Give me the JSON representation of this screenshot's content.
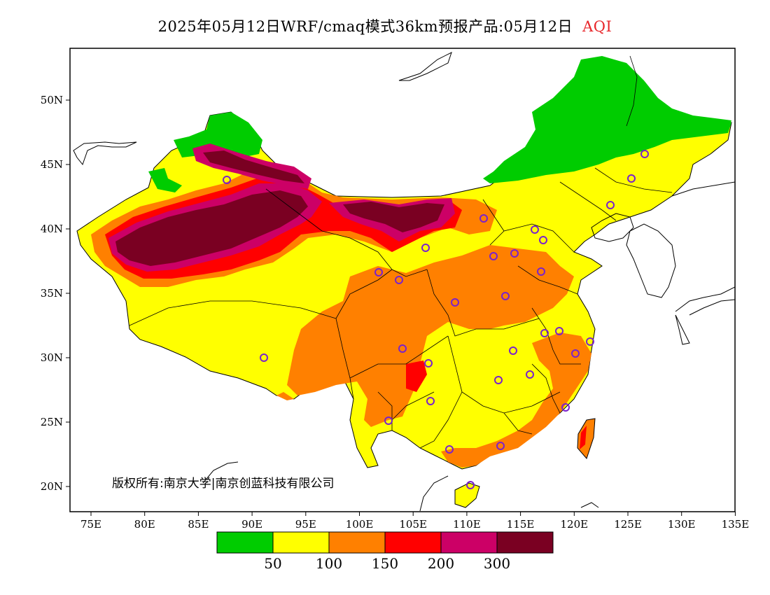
{
  "title": {
    "main": "2025年05月12日WRF/cmaq模式36km预报产品:05月12日",
    "product": "AQI",
    "product_color": "#e8262a"
  },
  "copyright": "版权所有:南京大学|南京创蓝科技有限公司",
  "axes": {
    "x_ticks": [
      "75E",
      "80E",
      "85E",
      "90E",
      "95E",
      "100E",
      "105E",
      "110E",
      "115E",
      "120E",
      "125E",
      "130E",
      "135E"
    ],
    "y_ticks": [
      "20N",
      "25N",
      "30N",
      "35N",
      "40N",
      "45N",
      "50N"
    ]
  },
  "legend": {
    "colors": [
      "#00cc00",
      "#ffff00",
      "#ff8000",
      "#ff0000",
      "#cc0066",
      "#7a0022"
    ],
    "labels": [
      "50",
      "100",
      "150",
      "200",
      "300"
    ]
  },
  "map_colors": {
    "good": "#00cc00",
    "moderate": "#ffff00",
    "light": "#ff8000",
    "medium": "#ff0000",
    "heavy": "#cc0066",
    "severe": "#7a0022",
    "station_marker": "#7a22cc"
  }
}
